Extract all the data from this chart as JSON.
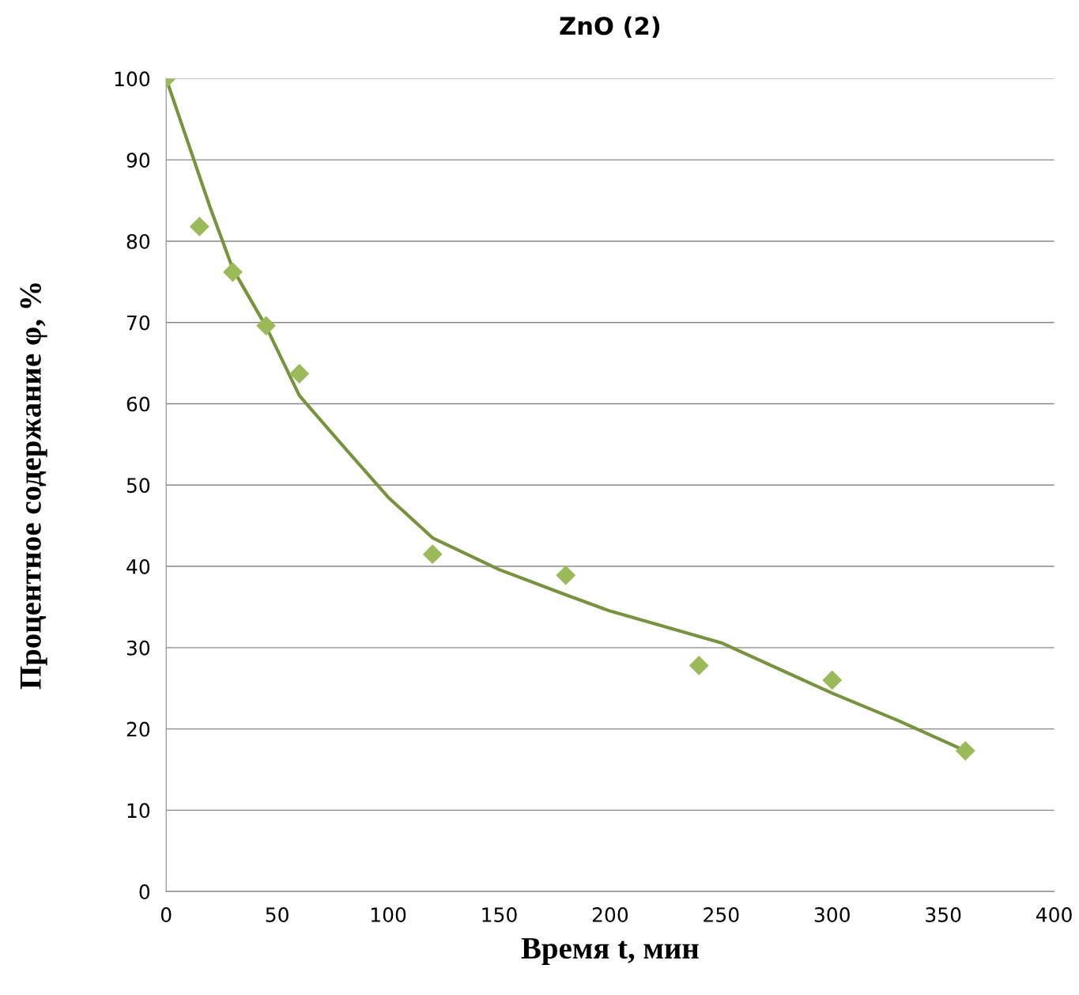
{
  "chart_data": {
    "type": "scatter",
    "title": "ZnO (2)",
    "xlabel": "Время t, мин",
    "ylabel": "Процентное содержание φ, %",
    "series": [
      {
        "color": "#9bbb59",
        "marker": "diamond",
        "x": [
          0,
          15,
          30,
          45,
          60,
          120,
          180,
          240,
          300,
          360
        ],
        "values": [
          100,
          81.8,
          76.2,
          69.6,
          63.7,
          41.5,
          38.9,
          27.8,
          26.0,
          17.3
        ]
      },
      {
        "type": "line",
        "color": "#77933c",
        "marker": "none",
        "line_style": "solid",
        "x": [
          0,
          10,
          20,
          30,
          45,
          60,
          80,
          100,
          120,
          150,
          180,
          200,
          250,
          300,
          330,
          360
        ],
        "values": [
          100,
          92,
          84,
          76.6,
          69.5,
          61,
          54.7,
          48.5,
          43.5,
          39.6,
          36.5,
          34.5,
          30.6,
          24.4,
          21,
          17.3
        ]
      }
    ],
    "xlim": [
      0,
      400
    ],
    "xticks": [
      0,
      50,
      100,
      150,
      200,
      250,
      300,
      350,
      400
    ],
    "ylim": [
      0,
      100
    ],
    "yticks": [
      0,
      10,
      20,
      30,
      40,
      50,
      60,
      70,
      80,
      90,
      100
    ],
    "grid": "y",
    "legend": false
  }
}
